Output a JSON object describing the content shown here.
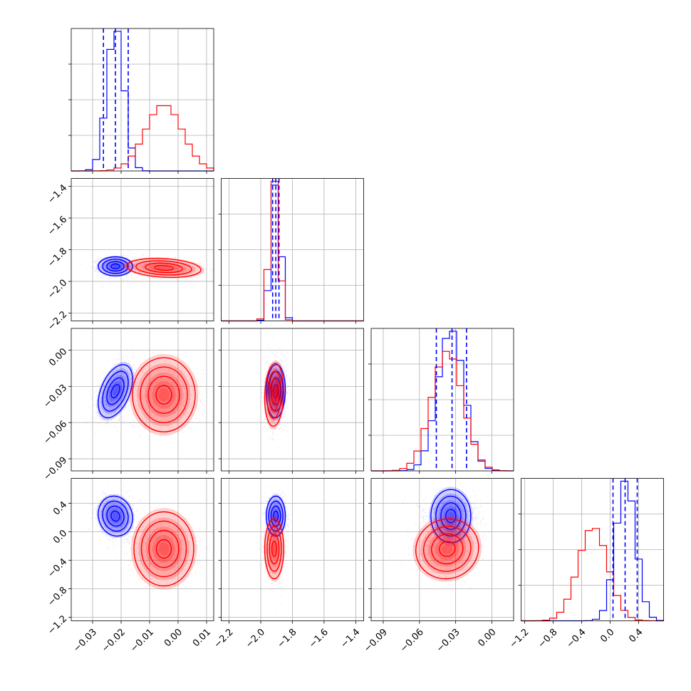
{
  "chart_data": {
    "type": "corner",
    "n_params": 4,
    "colors": {
      "blue": "#0000ff",
      "red": "#ff0000"
    },
    "grid": true,
    "params": [
      {
        "range": [
          -0.0375,
          0.0125
        ],
        "ticks": [
          -0.03,
          -0.02,
          -0.01,
          0.0,
          0.01
        ],
        "tick_labels": [
          "−0.03",
          "−0.02",
          "−0.01",
          "0.00",
          "0.01"
        ]
      },
      {
        "range": [
          -2.25,
          -1.35
        ],
        "ticks": [
          -2.2,
          -2.0,
          -1.8,
          -1.6,
          -1.4
        ],
        "tick_labels": [
          "−2.2",
          "−2.0",
          "−1.8",
          "−1.6",
          "−1.4"
        ]
      },
      {
        "range": [
          -0.1,
          0.018
        ],
        "ticks": [
          -0.09,
          -0.06,
          -0.03,
          0.0
        ],
        "tick_labels": [
          "−0.09",
          "−0.06",
          "−0.03",
          "0.00"
        ]
      },
      {
        "range": [
          -1.25,
          0.75
        ],
        "ticks": [
          -1.2,
          -0.8,
          -0.4,
          0.0,
          0.4
        ],
        "tick_labels": [
          "−1.2",
          "−0.8",
          "−0.4",
          "0.0",
          "0.4"
        ]
      }
    ],
    "quantiles_blue": [
      [
        -0.0262,
        -0.022,
        -0.0175
      ],
      [
        -1.925,
        -1.905,
        -1.885
      ],
      [
        -0.046,
        -0.033,
        -0.021
      ],
      [
        0.04,
        0.21,
        0.38
      ]
    ],
    "series": [
      {
        "name": "blue",
        "color": "#0000ff",
        "means": [
          -0.022,
          -1.905,
          -0.034,
          0.22
        ],
        "sds": [
          0.003,
          0.03,
          0.011,
          0.14
        ],
        "corr": {
          "0-1": 0.0,
          "0-2": 0.45,
          "0-3": -0.1,
          "1-2": 0.05,
          "1-3": 0.0,
          "2-3": 0.0
        }
      },
      {
        "name": "red",
        "color": "#ff0000",
        "means": [
          -0.005,
          -1.915,
          -0.037,
          -0.24
        ],
        "sds": [
          0.0065,
          0.03,
          0.013,
          0.21
        ],
        "corr": {
          "0-1": -0.2,
          "0-2": 0.0,
          "0-3": 0.0,
          "1-2": 0.1,
          "1-3": 0.0,
          "2-3": 0.05
        }
      }
    ]
  }
}
